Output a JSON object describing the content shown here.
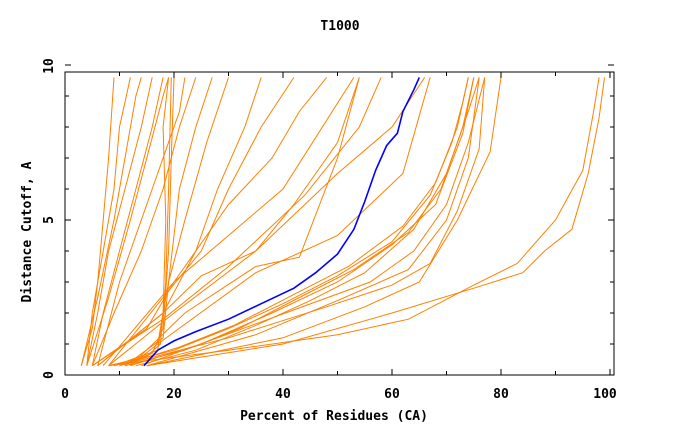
{
  "chart_data": {
    "type": "line",
    "title": "T1000",
    "xlabel": "Percent of Residues (CA)",
    "ylabel": "Distance Cutoff, A",
    "xlim": [
      0,
      100
    ],
    "ylim": [
      0,
      10
    ],
    "xticks": [
      "0",
      "20",
      "40",
      "60",
      "80",
      "100"
    ],
    "yticks": [
      "0",
      "5",
      "10"
    ],
    "grid": false,
    "colors": {
      "highlight": "#0000ff",
      "others": "#ff8000"
    },
    "highlight": [
      [
        14.5,
        0.3
      ],
      [
        17,
        0.8
      ],
      [
        20,
        1.1
      ],
      [
        24,
        1.4
      ],
      [
        30,
        1.8
      ],
      [
        36,
        2.3
      ],
      [
        42,
        2.8
      ],
      [
        46,
        3.3
      ],
      [
        50,
        3.9
      ],
      [
        53,
        4.7
      ],
      [
        55,
        5.6
      ],
      [
        57,
        6.6
      ],
      [
        59,
        7.4
      ],
      [
        61,
        7.8
      ],
      [
        62,
        8.5
      ],
      [
        64,
        9.2
      ],
      [
        65,
        9.6
      ]
    ],
    "series": [
      [
        [
          3,
          0.3
        ],
        [
          5,
          1.5
        ],
        [
          6,
          3
        ],
        [
          7,
          5
        ],
        [
          8,
          7
        ],
        [
          9,
          9.6
        ]
      ],
      [
        [
          4,
          0.3
        ],
        [
          5,
          2
        ],
        [
          7,
          4
        ],
        [
          9,
          6
        ],
        [
          10,
          8
        ],
        [
          12,
          9.6
        ]
      ],
      [
        [
          4,
          0.3
        ],
        [
          6,
          2
        ],
        [
          8,
          4
        ],
        [
          11,
          6
        ],
        [
          14,
          8
        ],
        [
          16,
          9.6
        ]
      ],
      [
        [
          5,
          0.3
        ],
        [
          7,
          2
        ],
        [
          10,
          4
        ],
        [
          13,
          6
        ],
        [
          16,
          8
        ],
        [
          18,
          9.6
        ]
      ],
      [
        [
          4,
          0.3
        ],
        [
          8,
          2.5
        ],
        [
          12,
          5
        ],
        [
          15,
          7
        ],
        [
          18,
          9
        ],
        [
          19,
          9.6
        ]
      ],
      [
        [
          5,
          0.3
        ],
        [
          9,
          2
        ],
        [
          14,
          4
        ],
        [
          18,
          6
        ],
        [
          21,
          8
        ],
        [
          24,
          9.6
        ]
      ],
      [
        [
          6,
          0.3
        ],
        [
          10,
          3
        ],
        [
          16,
          6
        ],
        [
          21,
          8.5
        ],
        [
          22,
          9.6
        ]
      ],
      [
        [
          3,
          0.3
        ],
        [
          6,
          2.5
        ],
        [
          9,
          5
        ],
        [
          11,
          7
        ],
        [
          13,
          9
        ],
        [
          14,
          9.6
        ]
      ],
      [
        [
          8,
          0.3
        ],
        [
          15,
          0.6
        ],
        [
          17.5,
          1
        ],
        [
          18.5,
          3
        ],
        [
          19,
          6
        ],
        [
          19.5,
          9.6
        ]
      ],
      [
        [
          10,
          0.3
        ],
        [
          16,
          0.7
        ],
        [
          18,
          1.5
        ],
        [
          19,
          4
        ],
        [
          19.5,
          7
        ],
        [
          20,
          9.6
        ]
      ],
      [
        [
          9,
          0.3
        ],
        [
          17,
          0.8
        ],
        [
          18,
          2
        ],
        [
          18.5,
          5
        ],
        [
          18,
          8
        ],
        [
          19,
          9.6
        ]
      ],
      [
        [
          12,
          0.3
        ],
        [
          17,
          1
        ],
        [
          19,
          3
        ],
        [
          21,
          6
        ],
        [
          24,
          8
        ],
        [
          27,
          9.6
        ]
      ],
      [
        [
          11,
          0.3
        ],
        [
          18,
          1.2
        ],
        [
          19,
          3
        ],
        [
          22,
          5
        ],
        [
          26,
          7.5
        ],
        [
          30,
          9.6
        ]
      ],
      [
        [
          5,
          0.3
        ],
        [
          15,
          1.5
        ],
        [
          20,
          3
        ],
        [
          30,
          4.5
        ],
        [
          40,
          6
        ],
        [
          53,
          9.6
        ]
      ],
      [
        [
          6,
          0.3
        ],
        [
          18,
          2
        ],
        [
          25,
          3.2
        ],
        [
          35,
          4
        ],
        [
          42,
          5.5
        ],
        [
          50,
          7.5
        ],
        [
          54,
          9.6
        ]
      ],
      [
        [
          5,
          0.3
        ],
        [
          18,
          1.8
        ],
        [
          30,
          3.5
        ],
        [
          44,
          5.8
        ],
        [
          54,
          8
        ],
        [
          58,
          9.6
        ]
      ],
      [
        [
          12,
          0.3
        ],
        [
          22,
          2
        ],
        [
          35,
          3.5
        ],
        [
          43,
          3.8
        ],
        [
          50,
          7
        ],
        [
          54,
          9.6
        ]
      ],
      [
        [
          8,
          0.3
        ],
        [
          18,
          2.5
        ],
        [
          25,
          4
        ],
        [
          30,
          6
        ],
        [
          36,
          8
        ],
        [
          42,
          9.6
        ]
      ],
      [
        [
          6,
          0.3
        ],
        [
          18,
          2
        ],
        [
          24,
          4
        ],
        [
          28,
          6
        ],
        [
          33,
          8
        ],
        [
          36,
          9.6
        ]
      ],
      [
        [
          7,
          0.3
        ],
        [
          20,
          3
        ],
        [
          30,
          5.5
        ],
        [
          38,
          7
        ],
        [
          43,
          8.5
        ],
        [
          48,
          9.6
        ]
      ],
      [
        [
          9,
          0.3
        ],
        [
          20,
          0.8
        ],
        [
          30,
          1.5
        ],
        [
          40,
          2.3
        ],
        [
          50,
          3.2
        ],
        [
          60,
          4.3
        ],
        [
          67,
          5.8
        ],
        [
          71,
          7.5
        ],
        [
          73,
          8.8
        ],
        [
          74,
          9.6
        ]
      ],
      [
        [
          10,
          0.3
        ],
        [
          21,
          0.9
        ],
        [
          31,
          1.6
        ],
        [
          42,
          2.6
        ],
        [
          52,
          3.5
        ],
        [
          62,
          4.8
        ],
        [
          68,
          6.2
        ],
        [
          72,
          8
        ],
        [
          74,
          9.6
        ]
      ],
      [
        [
          11,
          0.3
        ],
        [
          22,
          0.8
        ],
        [
          32,
          1.5
        ],
        [
          43,
          2.5
        ],
        [
          53,
          3.4
        ],
        [
          63,
          4.6
        ],
        [
          69,
          6
        ],
        [
          73,
          8
        ],
        [
          75,
          9.6
        ]
      ],
      [
        [
          13,
          0.3
        ],
        [
          24,
          0.8
        ],
        [
          35,
          1.6
        ],
        [
          45,
          2.4
        ],
        [
          55,
          3.3
        ],
        [
          64,
          4.7
        ],
        [
          70,
          6.5
        ],
        [
          74,
          8.5
        ],
        [
          76,
          9.6
        ]
      ],
      [
        [
          12,
          0.3
        ],
        [
          25,
          1
        ],
        [
          38,
          2
        ],
        [
          50,
          3
        ],
        [
          60,
          4.2
        ],
        [
          68,
          5.5
        ],
        [
          73,
          7.8
        ],
        [
          75,
          9.6
        ]
      ],
      [
        [
          14,
          0.3
        ],
        [
          28,
          1.2
        ],
        [
          42,
          2.1
        ],
        [
          56,
          3
        ],
        [
          64,
          4
        ],
        [
          70,
          5.5
        ],
        [
          74,
          7.5
        ],
        [
          77,
          9.6
        ]
      ],
      [
        [
          10,
          0.3
        ],
        [
          30,
          1.2
        ],
        [
          48,
          2.2
        ],
        [
          60,
          2.9
        ],
        [
          67,
          3.6
        ],
        [
          72,
          5.3
        ],
        [
          76,
          7.3
        ],
        [
          77,
          9.6
        ]
      ],
      [
        [
          15,
          0.3
        ],
        [
          35,
          1.3
        ],
        [
          50,
          2.4
        ],
        [
          63,
          3.4
        ],
        [
          70,
          5
        ],
        [
          74,
          7
        ],
        [
          76,
          9.6
        ]
      ],
      [
        [
          15,
          0.3
        ],
        [
          40,
          1.2
        ],
        [
          55,
          2.2
        ],
        [
          65,
          3
        ],
        [
          72,
          5
        ],
        [
          78,
          7.2
        ],
        [
          80,
          9.6
        ]
      ],
      [
        [
          8,
          0.3
        ],
        [
          30,
          0.8
        ],
        [
          50,
          1.3
        ],
        [
          63,
          1.8
        ],
        [
          75,
          2.9
        ],
        [
          83,
          3.6
        ],
        [
          90,
          5
        ],
        [
          95,
          6.6
        ],
        [
          97,
          8.5
        ],
        [
          98,
          9.6
        ]
      ],
      [
        [
          15,
          0.3
        ],
        [
          40,
          1
        ],
        [
          60,
          2
        ],
        [
          75,
          2.8
        ],
        [
          84,
          3.3
        ],
        [
          88,
          4
        ],
        [
          93,
          4.7
        ],
        [
          96,
          6.5
        ],
        [
          98,
          8.3
        ],
        [
          99,
          9.6
        ]
      ],
      [
        [
          8,
          0.3
        ],
        [
          20,
          2
        ],
        [
          35,
          4
        ],
        [
          50,
          6.5
        ],
        [
          60,
          8
        ],
        [
          66,
          9.6
        ]
      ],
      [
        [
          17,
          1
        ],
        [
          35,
          3.3
        ],
        [
          50,
          4.5
        ],
        [
          62,
          6.5
        ],
        [
          67,
          9.6
        ]
      ]
    ]
  }
}
